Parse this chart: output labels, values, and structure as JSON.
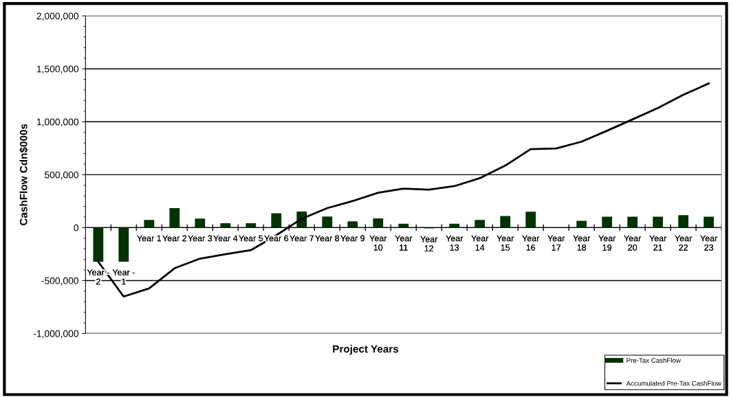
{
  "chart_data": {
    "type": "bar",
    "xlabel": "Project Years",
    "ylabel": "CashFlow Cdn$000s",
    "categories": [
      "Year -\n2",
      "Year -\n1",
      "Year 1",
      "Year 2",
      "Year 3",
      "Year 4",
      "Year 5",
      "Year 6",
      "Year 7",
      "Year 8",
      "Year 9",
      "Year\n10",
      "Year\n11",
      "Year\n12",
      "Year\n13",
      "Year\n14",
      "Year\n15",
      "Year\n16",
      "Year\n17",
      "Year\n18",
      "Year\n19",
      "Year\n20",
      "Year\n21",
      "Year\n22",
      "Year\n23"
    ],
    "series": [
      {
        "name": "Pre-Tax CashFlow",
        "color": "#003300",
        "values": [
          -322000,
          -322000,
          72000,
          184000,
          86000,
          42000,
          42000,
          136000,
          151000,
          105000,
          59000,
          87000,
          36000,
          -8000,
          36000,
          72000,
          110000,
          150000,
          0,
          64000,
          103000,
          103000,
          103000,
          118000,
          103000
        ]
      },
      {
        "name": "Accumulated Pre-Tax CashFlow",
        "type": "line",
        "color": "#000000",
        "values": [
          -322000,
          -651000,
          -574000,
          -384000,
          -293000,
          -252000,
          -213000,
          -72000,
          84000,
          184000,
          251000,
          329000,
          368000,
          358000,
          392000,
          467000,
          586000,
          741000,
          748000,
          812000,
          915000,
          1022000,
          1130000,
          1254000,
          1362000
        ]
      }
    ],
    "ylim": [
      -1000000,
      2000000
    ],
    "yticks": [
      {
        "value": -1000000,
        "label": "-1,000,000"
      },
      {
        "value": -500000,
        "label": "-500,000"
      },
      0,
      {
        "value": 500000,
        "label": "500,000"
      },
      {
        "value": 1000000,
        "label": "1,000,000"
      },
      {
        "value": 1500000,
        "label": "1,500,000"
      },
      {
        "value": 2000000,
        "label": "2,000,000"
      }
    ],
    "grid": "y",
    "legend": "bottom right",
    "marker": "none",
    "line_style": "solid"
  }
}
